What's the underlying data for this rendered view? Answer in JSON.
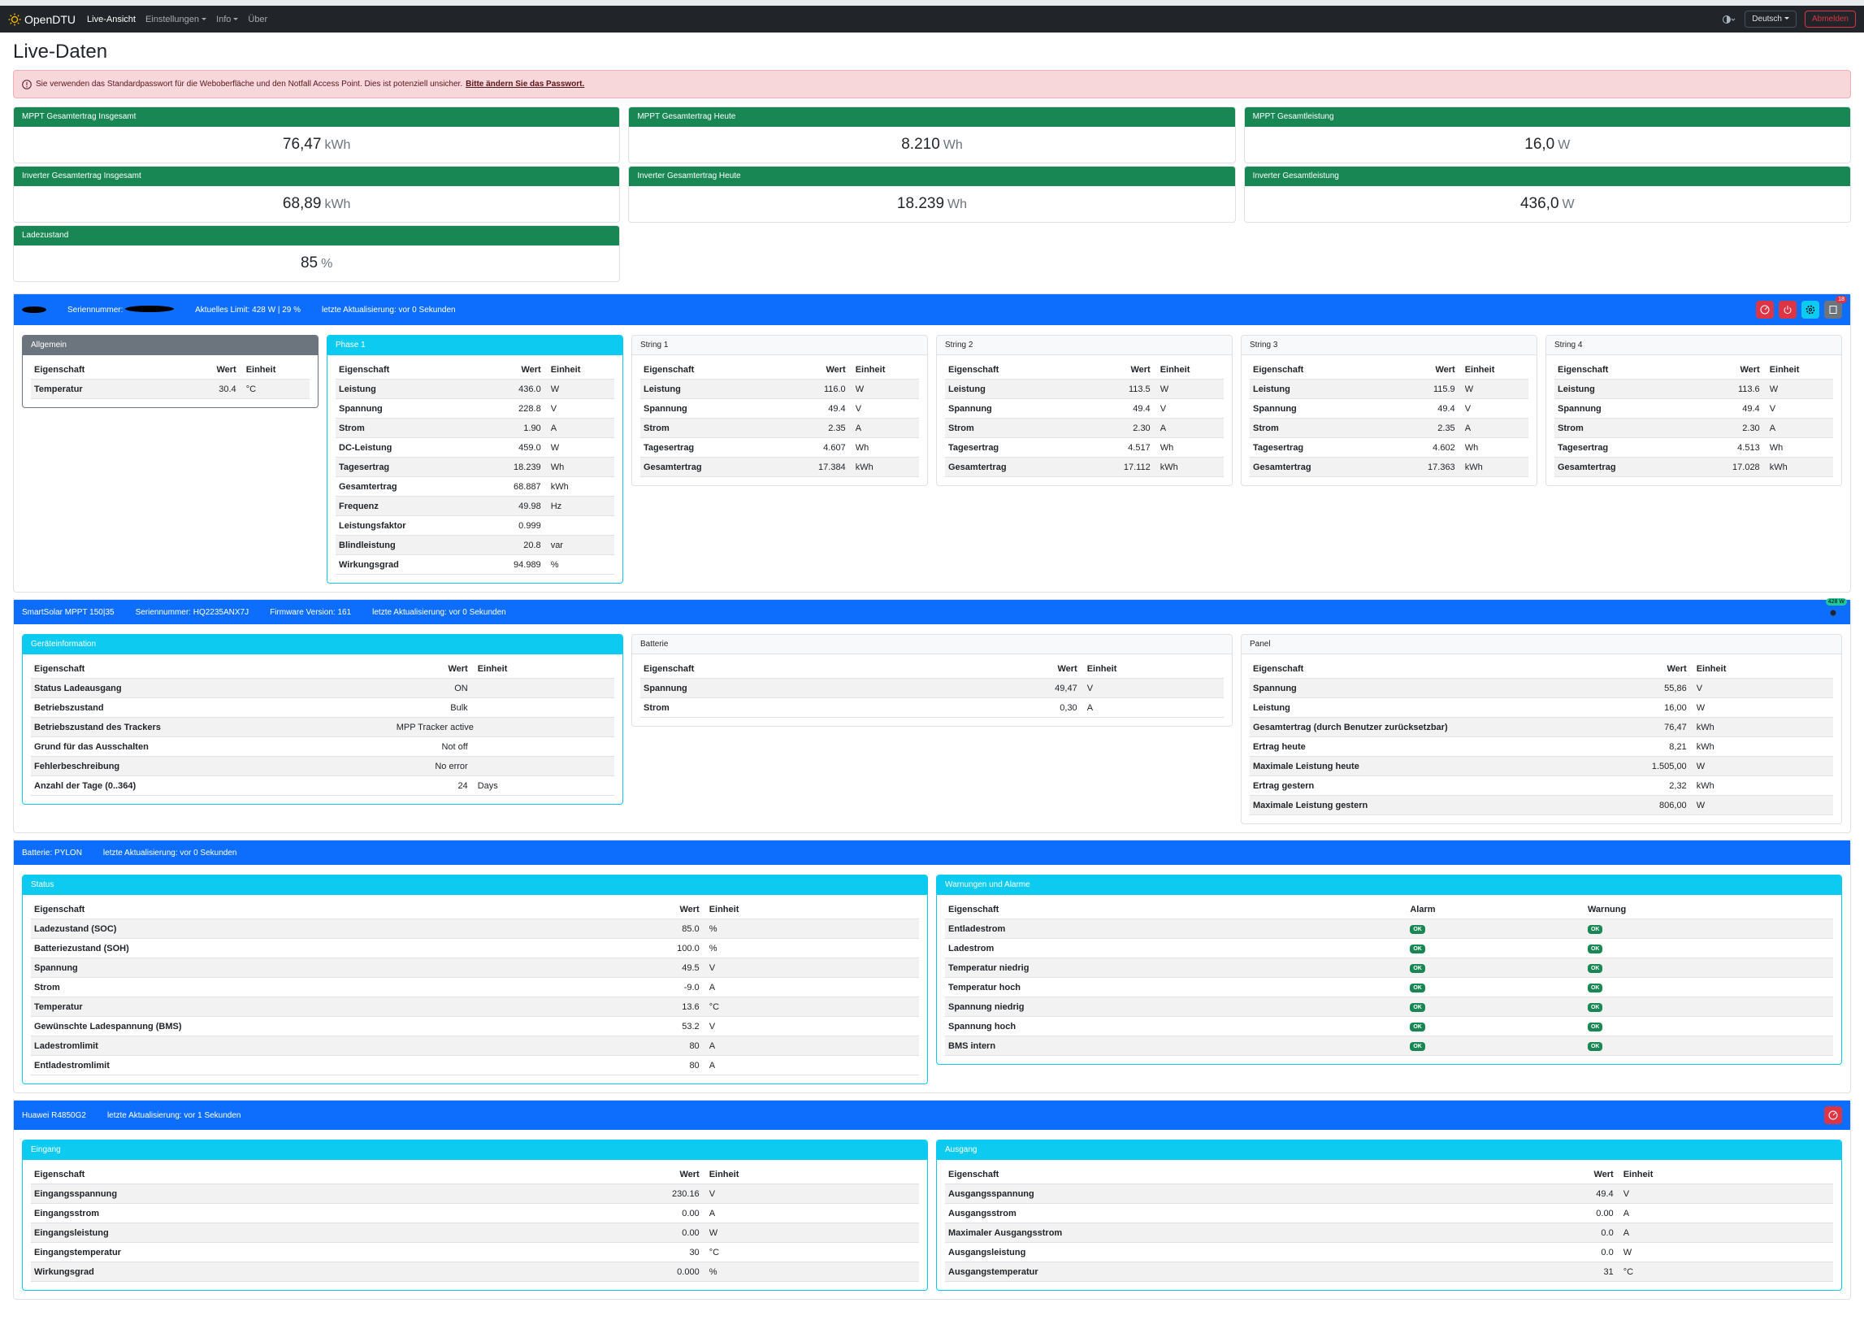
{
  "navbar": {
    "brand": "OpenDTU",
    "menu": [
      "Live-Ansicht",
      "Einstellungen",
      "Info",
      "Über"
    ],
    "language": "Deutsch",
    "logout": "Abmelden"
  },
  "title": "Live-Daten",
  "alert": {
    "text": "Sie verwenden das Standardpasswort für die Weboberfläche und den Notfall Access Point. Dies ist potenziell unsicher.",
    "link": "Bitte ändern Sie das Passwort."
  },
  "summary": [
    {
      "label": "MPPT Gesamtertrag Insgesamt",
      "value": "76,47",
      "unit": "kWh"
    },
    {
      "label": "MPPT Gesamtertrag Heute",
      "value": "8.210",
      "unit": "Wh"
    },
    {
      "label": "MPPT Gesamtleistung",
      "value": "16,0",
      "unit": "W"
    },
    {
      "label": "Inverter Gesamtertrag Insgesamt",
      "value": "68,89",
      "unit": "kWh"
    },
    {
      "label": "Inverter Gesamtertrag Heute",
      "value": "18.239",
      "unit": "Wh"
    },
    {
      "label": "Inverter Gesamtleistung",
      "value": "436,0",
      "unit": "W"
    },
    {
      "label": "Ladezustand",
      "value": "85",
      "unit": "%"
    }
  ],
  "sections": [
    {
      "info": [
        "Seriennummer:",
        "Aktuelles Limit: 428 W | 29 %",
        "letzte Aktualisierung: vor 0 Sekunden"
      ],
      "badge": "18",
      "cards": [
        {
          "title": "Allgemein",
          "color": "#6c757d",
          "headers": [
            "Eigenschaft",
            "Wert",
            "Einheit"
          ],
          "rows": [
            [
              "Temperatur",
              "30.4",
              "°C"
            ]
          ]
        },
        {
          "title": "Phase 1",
          "color": "#0dcaf0",
          "headers": [
            "Eigenschaft",
            "Wert",
            "Einheit"
          ],
          "rows": [
            [
              "Leistung",
              "436.0",
              "W"
            ],
            [
              "Spannung",
              "228.8",
              "V"
            ],
            [
              "Strom",
              "1.90",
              "A"
            ],
            [
              "DC-Leistung",
              "459.0",
              "W"
            ],
            [
              "Tagesertrag",
              "18.239",
              "Wh"
            ],
            [
              "Gesamtertrag",
              "68.887",
              "kWh"
            ],
            [
              "Frequenz",
              "49.98",
              "Hz"
            ],
            [
              "Leistungsfaktor",
              "0.999"
            ],
            [
              "Blindleistung",
              "20.8",
              "var"
            ],
            [
              "Wirkungsgrad",
              "94.989",
              "%"
            ]
          ]
        },
        {
          "title": "String 1",
          "color": "#f8f9fa",
          "headers": [
            "Eigenschaft",
            "Wert",
            "Einheit"
          ],
          "rows": [
            [
              "Leistung",
              "116.0",
              "W"
            ],
            [
              "Spannung",
              "49.4",
              "V"
            ],
            [
              "Strom",
              "2.35",
              "A"
            ],
            [
              "Tagesertrag",
              "4.607",
              "Wh"
            ],
            [
              "Gesamtertrag",
              "17.384",
              "kWh"
            ]
          ]
        },
        {
          "title": "String 2",
          "color": "#f8f9fa",
          "headers": [
            "Eigenschaft",
            "Wert",
            "Einheit"
          ],
          "rows": [
            [
              "Leistung",
              "113.5",
              "W"
            ],
            [
              "Spannung",
              "49.4",
              "V"
            ],
            [
              "Strom",
              "2.30",
              "A"
            ],
            [
              "Tagesertrag",
              "4.517",
              "Wh"
            ],
            [
              "Gesamtertrag",
              "17.112",
              "kWh"
            ]
          ]
        },
        {
          "title": "String 3",
          "color": "#f8f9fa",
          "headers": [
            "Eigenschaft",
            "Wert",
            "Einheit"
          ],
          "rows": [
            [
              "Leistung",
              "115.9",
              "W"
            ],
            [
              "Spannung",
              "49.4",
              "V"
            ],
            [
              "Strom",
              "2.35",
              "A"
            ],
            [
              "Tagesertrag",
              "4.602",
              "Wh"
            ],
            [
              "Gesamtertrag",
              "17.363",
              "kWh"
            ]
          ]
        },
        {
          "title": "String 4",
          "color": "#f8f9fa",
          "headers": [
            "Eigenschaft",
            "Wert",
            "Einheit"
          ],
          "rows": [
            [
              "Leistung",
              "113.6",
              "W"
            ],
            [
              "Spannung",
              "49.4",
              "V"
            ],
            [
              "Strom",
              "2.30",
              "A"
            ],
            [
              "Tagesertrag",
              "4.513",
              "Wh"
            ],
            [
              "Gesamtertrag",
              "17.028",
              "kWh"
            ]
          ]
        }
      ]
    },
    {
      "info": [
        "SmartSolar MPPT 150|35",
        "Seriennummer: HQ2235ANX7J",
        "Firmware Version: 161",
        "letzte Aktualisierung: vor 0 Sekunden"
      ],
      "badge": "428 W",
      "cards": [
        {
          "title": "Geräteinformation",
          "color": "#0dcaf0",
          "headers": [
            "Eigenschaft",
            "Wert",
            "Einheit"
          ],
          "rows": [
            [
              "Status Ladeausgang",
              "ON"
            ],
            [
              "Betriebszustand",
              "Bulk"
            ],
            [
              "Betriebszustand des Trackers",
              "MPP Tracker active"
            ],
            [
              "Grund für das Ausschalten",
              "Not off"
            ],
            [
              "Fehlerbeschreibung",
              "No error"
            ],
            [
              "Anzahl der Tage (0..364)",
              "24",
              "Days"
            ]
          ]
        },
        {
          "title": "Batterie",
          "color": "#f8f9fa",
          "headers": [
            "Eigenschaft",
            "Wert",
            "Einheit"
          ],
          "rows": [
            [
              "Spannung",
              "49,47",
              "V"
            ],
            [
              "Strom",
              "0,30",
              "A"
            ]
          ]
        },
        {
          "title": "Panel",
          "color": "#f8f9fa",
          "headers": [
            "Eigenschaft",
            "Wert",
            "Einheit"
          ],
          "rows": [
            [
              "Spannung",
              "55,86",
              "V"
            ],
            [
              "Leistung",
              "16,00",
              "W"
            ],
            [
              "Gesamtertrag (durch Benutzer zurücksetzbar)",
              "76,47",
              "kWh"
            ],
            [
              "Ertrag heute",
              "8,21",
              "kWh"
            ],
            [
              "Maximale Leistung heute",
              "1.505,00",
              "W"
            ],
            [
              "Ertrag gestern",
              "2,32",
              "kWh"
            ],
            [
              "Maximale Leistung gestern",
              "806,00",
              "W"
            ]
          ]
        }
      ]
    },
    {
      "info": [
        "Batterie: PYLON",
        "letzte Aktualisierung: vor 0 Sekunden"
      ],
      "cards": [
        {
          "title": "Status",
          "color": "#0dcaf0",
          "headers": [
            "Eigenschaft",
            "Wert",
            "Einheit"
          ],
          "rows": [
            [
              "Ladezustand (SOC)",
              "85.0",
              "%"
            ],
            [
              "Batteriezustand (SOH)",
              "100.0",
              "%"
            ],
            [
              "Spannung",
              "49.5",
              "V"
            ],
            [
              "Strom",
              "-9.0",
              "A"
            ],
            [
              "Temperatur",
              "13.6",
              "°C"
            ],
            [
              "Gewünschte Ladespannung (BMS)",
              "53.2",
              "V"
            ],
            [
              "Ladestromlimit",
              "80",
              "A"
            ],
            [
              "Entladestromlimit",
              "80",
              "A"
            ]
          ]
        },
        {
          "title": "Warnungen und Alarme",
          "color": "#0dcaf0",
          "headers": [
            "Eigenschaft",
            "Alarm",
            "Warnung"
          ],
          "rows": [
            {
              "name": "Entladestrom",
              "alarm": "OK",
              "warning": "OK"
            },
            {
              "name": "Ladestrom",
              "alarm": "OK",
              "warning": "OK"
            },
            {
              "name": "Temperatur niedrig",
              "alarm": "OK",
              "warning": "OK"
            },
            {
              "name": "Temperatur hoch",
              "alarm": "OK",
              "warning": "OK"
            },
            {
              "name": "Spannung niedrig",
              "alarm": "OK",
              "warning": "OK"
            },
            {
              "name": "Spannung hoch",
              "alarm": "OK",
              "warning": "OK"
            },
            {
              "name": "BMS intern",
              "alarm": "OK",
              "warning": "OK"
            }
          ]
        }
      ]
    },
    {
      "info": [
        "Huawei R4850G2",
        "letzte Aktualisierung: vor 1 Sekunden"
      ],
      "cards": [
        {
          "title": "Eingang",
          "color": "#0dcaf0",
          "headers": [
            "Eigenschaft",
            "Wert",
            "Einheit"
          ],
          "rows": [
            [
              "Eingangsspannung",
              "230.16",
              "V"
            ],
            [
              "Eingangsstrom",
              "0.00",
              "A"
            ],
            [
              "Eingangsleistung",
              "0.00",
              "W"
            ],
            [
              "Eingangstemperatur",
              "30",
              "°C"
            ],
            [
              "Wirkungsgrad",
              "0.000",
              "%"
            ]
          ]
        },
        {
          "title": "Ausgang",
          "color": "#0dcaf0",
          "headers": [
            "Eigenschaft",
            "Wert",
            "Einheit"
          ],
          "rows": [
            [
              "Ausgangsspannung",
              "49.4",
              "V"
            ],
            [
              "Ausgangsstrom",
              "0.00",
              "A"
            ],
            [
              "Maximaler Ausgangsstrom",
              "0.0",
              "A"
            ],
            [
              "Ausgangsleistung",
              "0.0",
              "W"
            ],
            [
              "Ausgangstemperatur",
              "31",
              "°C"
            ]
          ]
        }
      ]
    }
  ]
}
